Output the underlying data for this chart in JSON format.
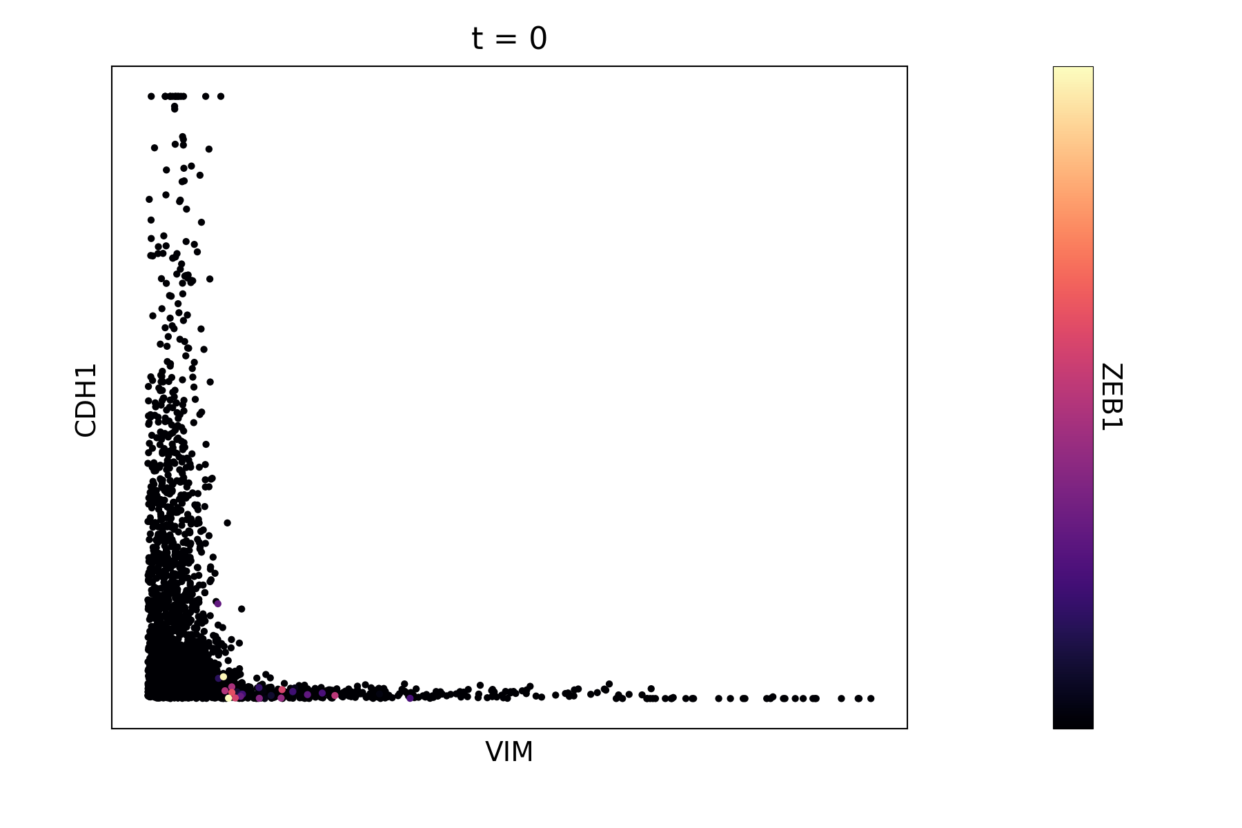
{
  "title": "t = 0",
  "xlabel": "VIM",
  "ylabel": "CDH1",
  "colorbar_label": "ZEB1",
  "cmap": "magma",
  "title_fontsize": 32,
  "label_fontsize": 28,
  "marker_size": 55,
  "alpha": 1.0,
  "seed": 42,
  "background_color": "#ffffff"
}
